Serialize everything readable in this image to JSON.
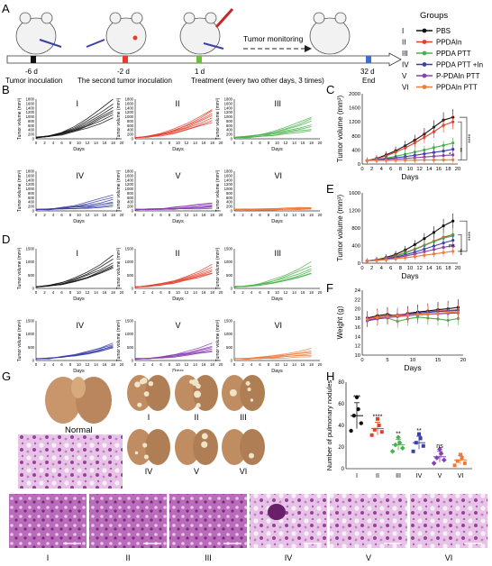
{
  "panel_letters": [
    "A",
    "B",
    "C",
    "D",
    "E",
    "F",
    "G",
    "H"
  ],
  "timeline": {
    "monitoring_label": "Tumor monitoring",
    "ticks": [
      {
        "day": "-6 d",
        "caption": "Tumor inoculation",
        "color": "#111111"
      },
      {
        "day": "-2 d",
        "caption": "The second tumor inoculation",
        "color": "#e2402c"
      },
      {
        "day": "1 d",
        "caption": "Treatment (every two other days, 3 times)",
        "color": "#6cbf3a"
      },
      {
        "day": "32 d",
        "caption": "End",
        "color": "#3a6fcf"
      }
    ]
  },
  "groups": {
    "title": "Groups",
    "items": [
      {
        "roman": "I",
        "name": "PBS",
        "color": "#111111"
      },
      {
        "roman": "II",
        "name": "PPDAIn",
        "color": "#e2402c"
      },
      {
        "roman": "III",
        "name": "PPDA PTT",
        "color": "#49b24a"
      },
      {
        "roman": "IV",
        "name": "PPDA PTT +In",
        "color": "#3b3fa8"
      },
      {
        "roman": "V",
        "name": "P-PDAIn PTT",
        "color": "#8a3fb0"
      },
      {
        "roman": "VI",
        "name": "PPDAIn PTT",
        "color": "#f07a3a"
      }
    ]
  },
  "small_axes": {
    "ylabel": "Tumor volume (mm³)",
    "xlabel": "Days",
    "xticks": [
      "0",
      "2",
      "4",
      "6",
      "8",
      "10",
      "12",
      "14",
      "16",
      "18",
      "20"
    ],
    "yticks": [
      "0",
      "200",
      "400",
      "600",
      "800",
      "1000",
      "1200",
      "1400",
      "1600",
      "1800"
    ],
    "dticks": [
      "0",
      "500",
      "1000",
      "1500"
    ]
  },
  "chart_data": [
    {
      "panel": "B",
      "type": "line",
      "xlabel": "Days",
      "ylabel": "Tumor volume (mm³)",
      "ylim": [
        0,
        1800
      ],
      "xlim": [
        0,
        20
      ],
      "x": [
        0,
        3,
        6,
        9,
        12,
        15,
        18
      ],
      "subplots": [
        {
          "label": "I",
          "color": "#111111",
          "finals": [
            1850,
            1600,
            1450,
            1300,
            1200,
            1100,
            950
          ]
        },
        {
          "label": "II",
          "color": "#e2402c",
          "finals": [
            1350,
            1250,
            1150,
            1050,
            950,
            850,
            750
          ]
        },
        {
          "label": "III",
          "color": "#49b24a",
          "finals": [
            1000,
            900,
            800,
            650,
            550,
            450,
            350
          ]
        },
        {
          "label": "IV",
          "color": "#3b3fa8",
          "finals": [
            750,
            600,
            500,
            400,
            350,
            250,
            200
          ]
        },
        {
          "label": "V",
          "color": "#8a3fb0",
          "finals": [
            380,
            330,
            280,
            240,
            200,
            160,
            130
          ]
        },
        {
          "label": "VI",
          "color": "#f07a3a",
          "finals": [
            170,
            150,
            130,
            110,
            90,
            80,
            60
          ]
        }
      ]
    },
    {
      "panel": "C",
      "type": "line",
      "xlabel": "Days",
      "ylabel": "Tumor volume (mm³)",
      "xlim": [
        0,
        20
      ],
      "ylim": [
        0,
        2000
      ],
      "xticks": [
        "0",
        "2",
        "4",
        "6",
        "8",
        "10",
        "12",
        "14",
        "16",
        "18",
        "20"
      ],
      "yticks": [
        "0",
        "400",
        "800",
        "1200",
        "1600",
        "2000"
      ],
      "x": [
        1,
        3,
        5,
        7,
        9,
        11,
        13,
        15,
        17,
        19
      ],
      "series": [
        {
          "color": "#111111",
          "values": [
            100,
            160,
            260,
            380,
            520,
            680,
            850,
            1050,
            1250,
            1330
          ]
        },
        {
          "color": "#e2402c",
          "values": [
            100,
            150,
            230,
            340,
            460,
            600,
            760,
            920,
            1100,
            1200
          ]
        },
        {
          "color": "#49b24a",
          "values": [
            100,
            130,
            170,
            220,
            280,
            340,
            400,
            470,
            530,
            600
          ]
        },
        {
          "color": "#3b3fa8",
          "values": [
            100,
            120,
            150,
            180,
            210,
            250,
            290,
            330,
            370,
            420
          ]
        },
        {
          "color": "#8a3fb0",
          "values": [
            100,
            110,
            125,
            140,
            160,
            180,
            200,
            220,
            240,
            260
          ]
        },
        {
          "color": "#f07a3a",
          "values": [
            100,
            100,
            105,
            105,
            110,
            110,
            115,
            115,
            118,
            120
          ]
        }
      ],
      "significance": [
        "****",
        "**",
        "*"
      ]
    },
    {
      "panel": "D",
      "type": "line",
      "xlabel": "Days",
      "ylabel": "Tumor volume (mm³)",
      "ylim": [
        0,
        1500
      ],
      "xlim": [
        0,
        20
      ],
      "x": [
        0,
        3,
        6,
        9,
        12,
        15,
        18
      ],
      "subplots": [
        {
          "label": "I",
          "color": "#111111",
          "finals": [
            1250,
            1100,
            950,
            850,
            800,
            750
          ]
        },
        {
          "label": "II",
          "color": "#e2402c",
          "finals": [
            900,
            800,
            720,
            650,
            600,
            550
          ]
        },
        {
          "label": "III",
          "color": "#49b24a",
          "finals": [
            1000,
            850,
            750,
            650,
            600,
            550
          ]
        },
        {
          "label": "IV",
          "color": "#3b3fa8",
          "finals": [
            650,
            600,
            550,
            520,
            500,
            480
          ]
        },
        {
          "label": "V",
          "color": "#8a3fb0",
          "finals": [
            650,
            550,
            480,
            420,
            380,
            330
          ]
        },
        {
          "label": "VI",
          "color": "#f07a3a",
          "finals": [
            450,
            380,
            320,
            260,
            200,
            150
          ]
        }
      ]
    },
    {
      "panel": "E",
      "type": "line",
      "xlabel": "Days",
      "ylabel": "Tumor volume (mm³)",
      "xlim": [
        0,
        20
      ],
      "ylim": [
        0,
        1600
      ],
      "xticks": [
        "0",
        "2",
        "4",
        "6",
        "8",
        "10",
        "12",
        "14",
        "16",
        "18",
        "20"
      ],
      "yticks": [
        "0",
        "400",
        "800",
        "1200",
        "1600"
      ],
      "x": [
        1,
        3,
        5,
        7,
        9,
        11,
        13,
        15,
        17,
        19
      ],
      "series": [
        {
          "color": "#111111",
          "values": [
            50,
            80,
            130,
            200,
            300,
            420,
            560,
            700,
            850,
            960
          ]
        },
        {
          "color": "#e2402c",
          "values": [
            50,
            75,
            115,
            170,
            240,
            320,
            410,
            500,
            590,
            650
          ]
        },
        {
          "color": "#49b24a",
          "values": [
            50,
            75,
            110,
            160,
            230,
            310,
            400,
            490,
            570,
            620
          ]
        },
        {
          "color": "#3b3fa8",
          "values": [
            50,
            70,
            100,
            140,
            190,
            250,
            320,
            390,
            460,
            520
          ]
        },
        {
          "color": "#8a3fb0",
          "values": [
            50,
            65,
            90,
            120,
            160,
            210,
            260,
            310,
            360,
            400
          ]
        },
        {
          "color": "#f07a3a",
          "values": [
            50,
            60,
            80,
            100,
            125,
            150,
            180,
            210,
            240,
            270
          ]
        }
      ],
      "significance": [
        "****",
        "***",
        "ns"
      ]
    },
    {
      "panel": "F",
      "type": "line",
      "xlabel": "Days",
      "ylabel": "Weight (g)",
      "xlim": [
        0,
        20
      ],
      "ylim": [
        10,
        24
      ],
      "xticks": [
        "0",
        "5",
        "10",
        "15",
        "20"
      ],
      "yticks": [
        "10",
        "12",
        "14",
        "16",
        "18",
        "20",
        "22",
        "24"
      ],
      "x": [
        1,
        3,
        5,
        7,
        9,
        11,
        13,
        15,
        17,
        19
      ],
      "series": [
        {
          "color": "#111111",
          "values": [
            18.0,
            18.5,
            18.8,
            18.4,
            19.0,
            19.3,
            19.5,
            19.8,
            20.0,
            20.3
          ]
        },
        {
          "color": "#e2402c",
          "values": [
            17.8,
            18.2,
            18.5,
            18.7,
            18.9,
            19.0,
            19.3,
            19.5,
            19.6,
            19.8
          ]
        },
        {
          "color": "#49b24a",
          "values": [
            17.5,
            17.9,
            18.0,
            17.3,
            17.8,
            18.2,
            18.0,
            17.8,
            17.5,
            17.9
          ]
        },
        {
          "color": "#3b3fa8",
          "values": [
            17.6,
            18.0,
            18.4,
            18.6,
            18.8,
            19.1,
            19.2,
            19.4,
            19.5,
            19.6
          ]
        },
        {
          "color": "#8a3fb0",
          "values": [
            17.4,
            17.8,
            18.1,
            18.3,
            18.5,
            18.7,
            18.8,
            18.9,
            19.0,
            19.1
          ]
        },
        {
          "color": "#f07a3a",
          "values": [
            17.7,
            18.1,
            18.3,
            18.5,
            18.6,
            18.8,
            18.9,
            19.0,
            19.2,
            19.3
          ]
        }
      ]
    },
    {
      "panel": "H",
      "type": "scatter",
      "ylabel": "Number of pulmonary nodules",
      "ylim": [
        0,
        80
      ],
      "yticks": [
        "0",
        "20",
        "40",
        "60",
        "80"
      ],
      "categories": [
        "I",
        "II",
        "III",
        "IV",
        "V",
        "VI"
      ],
      "groups": [
        {
          "label": "I",
          "color": "#111111",
          "points": [
            66,
            55,
            49,
            42,
            35
          ],
          "mean": 49,
          "sd": 12,
          "sig": "***"
        },
        {
          "label": "II",
          "color": "#e2402c",
          "points": [
            46,
            40,
            36,
            34,
            31
          ],
          "mean": 37,
          "sd": 6,
          "sig": "****"
        },
        {
          "label": "III",
          "color": "#49b24a",
          "points": [
            29,
            24,
            22,
            19,
            16
          ],
          "mean": 22,
          "sd": 5,
          "sig": "**"
        },
        {
          "label": "IV",
          "color": "#3b3fa8",
          "points": [
            32,
            28,
            24,
            21,
            16
          ],
          "mean": 24,
          "sd": 6,
          "sig": "**"
        },
        {
          "label": "V",
          "color": "#8a3fb0",
          "points": [
            18,
            14,
            10,
            8,
            5
          ],
          "mean": 11,
          "sd": 5,
          "sig": "ns"
        },
        {
          "label": "VI",
          "color": "#f07a3a",
          "points": [
            13,
            10,
            7,
            5,
            3
          ],
          "mean": 8,
          "sd": 4,
          "sig": ""
        }
      ]
    }
  ],
  "panel_g": {
    "normal_label": "Normal",
    "lung_labels": [
      "I",
      "II",
      "III",
      "IV",
      "V",
      "VI"
    ]
  },
  "histology_labels": [
    "I",
    "II",
    "III",
    "IV",
    "V",
    "VI"
  ]
}
